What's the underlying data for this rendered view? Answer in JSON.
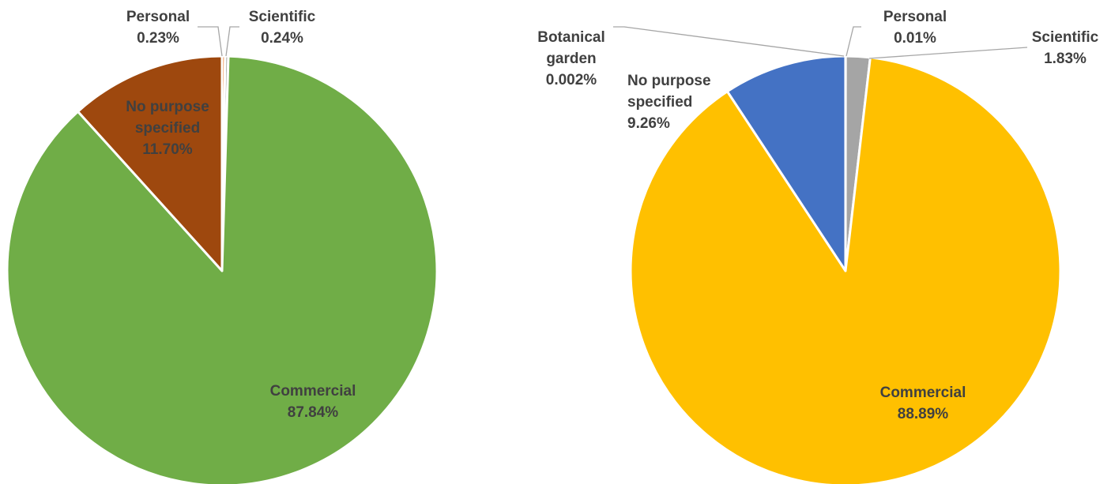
{
  "chart_data": [
    {
      "type": "pie",
      "title": "",
      "slices": [
        {
          "label": "Personal",
          "value": 0.23,
          "value_label": "0.23%",
          "color": "#ED7D31"
        },
        {
          "label": "Scientific",
          "value": 0.24,
          "value_label": "0.24%",
          "color": "#A5A5A5"
        },
        {
          "label": "Commercial",
          "value": 87.84,
          "value_label": "87.84%",
          "color": "#70AD47"
        },
        {
          "label": "No purpose specified",
          "value": 11.7,
          "value_label": "11.70%",
          "color": "#9E480E"
        }
      ]
    },
    {
      "type": "pie",
      "title": "",
      "slices": [
        {
          "label": "Personal",
          "value": 0.01,
          "value_label": "0.01%",
          "color": "#ED7D31"
        },
        {
          "label": "Scientific",
          "value": 1.83,
          "value_label": "1.83%",
          "color": "#A5A5A5"
        },
        {
          "label": "Commercial",
          "value": 88.89,
          "value_label": "88.89%",
          "color": "#FFC000"
        },
        {
          "label": "No purpose specified",
          "value": 9.26,
          "value_label": "9.26%",
          "color": "#4472C4"
        },
        {
          "label": "Botanical garden",
          "value": 0.002,
          "value_label": "0.002%",
          "color": "#5B9BD5"
        }
      ]
    }
  ]
}
